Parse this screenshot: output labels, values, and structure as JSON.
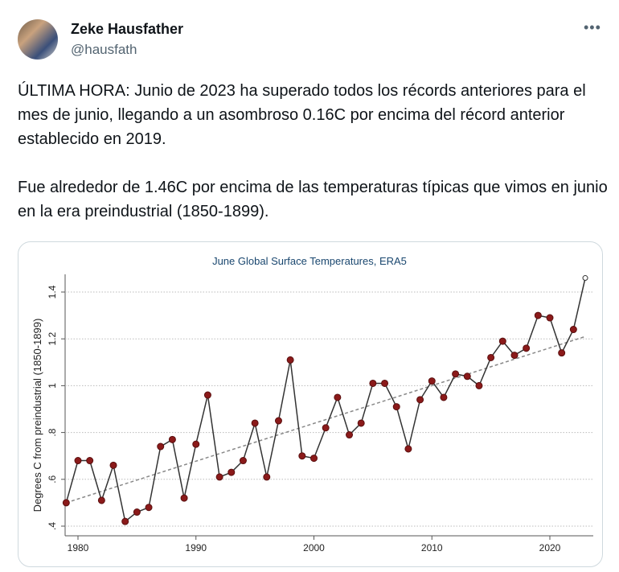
{
  "author": {
    "name": "Zeke Hausfather",
    "handle": "@hausfath"
  },
  "more_icon": "ellipsis-icon",
  "tweet": {
    "paragraphs": [
      "ÚLTIMA HORA: Junio de 2023 ha superado todos los récords anteriores para el mes de junio, llegando a un asombroso 0.16C por encima del récord anterior establecido en 2019.",
      "Fue alrededor de 1.46C por encima de las temperaturas típicas que vimos en junio en la era preindustrial (1850-1899)."
    ]
  },
  "chart_data": {
    "type": "line",
    "title": "June Global Surface Temperatures, ERA5",
    "xlabel": "",
    "ylabel": "Degrees C from preindustrial (1850-1899)",
    "xlim": [
      1979,
      2023
    ],
    "ylim": [
      0.4,
      1.46
    ],
    "x_ticks": [
      "1980",
      "1990",
      "2000",
      "2010",
      "2020"
    ],
    "y_ticks": [
      ".4",
      ".6",
      ".8",
      "1",
      "1.2",
      "1.4"
    ],
    "grid": "horizontal dotted",
    "colors": {
      "marker": "#8b1a1a",
      "line": "#333333",
      "trend": "#888888",
      "title": "#1a476f"
    },
    "x": [
      1979,
      1980,
      1981,
      1982,
      1983,
      1984,
      1985,
      1986,
      1987,
      1988,
      1989,
      1990,
      1991,
      1992,
      1993,
      1994,
      1995,
      1996,
      1997,
      1998,
      1999,
      2000,
      2001,
      2002,
      2003,
      2004,
      2005,
      2006,
      2007,
      2008,
      2009,
      2010,
      2011,
      2012,
      2013,
      2014,
      2015,
      2016,
      2017,
      2018,
      2019,
      2020,
      2021,
      2022,
      2023
    ],
    "values": [
      0.5,
      0.68,
      0.68,
      0.51,
      0.66,
      0.42,
      0.46,
      0.48,
      0.74,
      0.77,
      0.52,
      0.75,
      0.96,
      0.61,
      0.63,
      0.68,
      0.84,
      0.61,
      0.85,
      1.11,
      0.7,
      0.69,
      0.82,
      0.95,
      0.79,
      0.84,
      1.01,
      1.01,
      0.91,
      0.73,
      0.94,
      1.02,
      0.95,
      1.05,
      1.04,
      1.0,
      1.12,
      1.19,
      1.13,
      1.16,
      1.3,
      1.29,
      1.14,
      1.24,
      1.46
    ],
    "highlight": {
      "x": 2023,
      "value": 1.46,
      "marker": "open circle"
    },
    "trend": {
      "x": [
        1979,
        2023
      ],
      "values": [
        0.5,
        1.21
      ],
      "style": "dashed"
    }
  }
}
